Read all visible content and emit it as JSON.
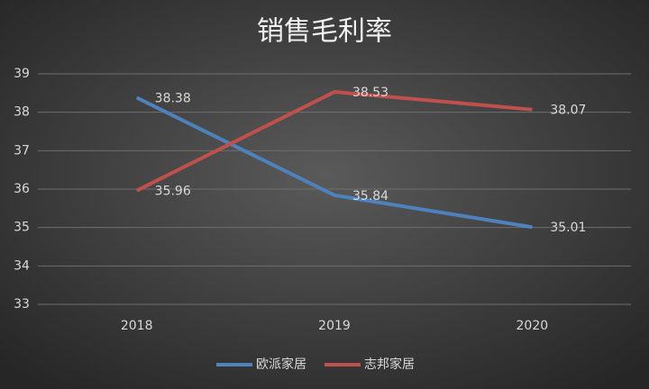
{
  "chart_data": {
    "type": "line",
    "title": "销售毛利率",
    "categories": [
      "2018",
      "2019",
      "2020"
    ],
    "series": [
      {
        "name": "欧派家居",
        "color": "#4f81bd",
        "values": [
          38.38,
          35.84,
          35.01
        ]
      },
      {
        "name": "志邦家居",
        "color": "#c0504d",
        "values": [
          35.96,
          38.53,
          38.07
        ]
      }
    ],
    "ylim": [
      33,
      39
    ],
    "yticks": [
      33,
      34,
      35,
      36,
      37,
      38,
      39
    ],
    "grid": true,
    "legend": "bottom"
  }
}
